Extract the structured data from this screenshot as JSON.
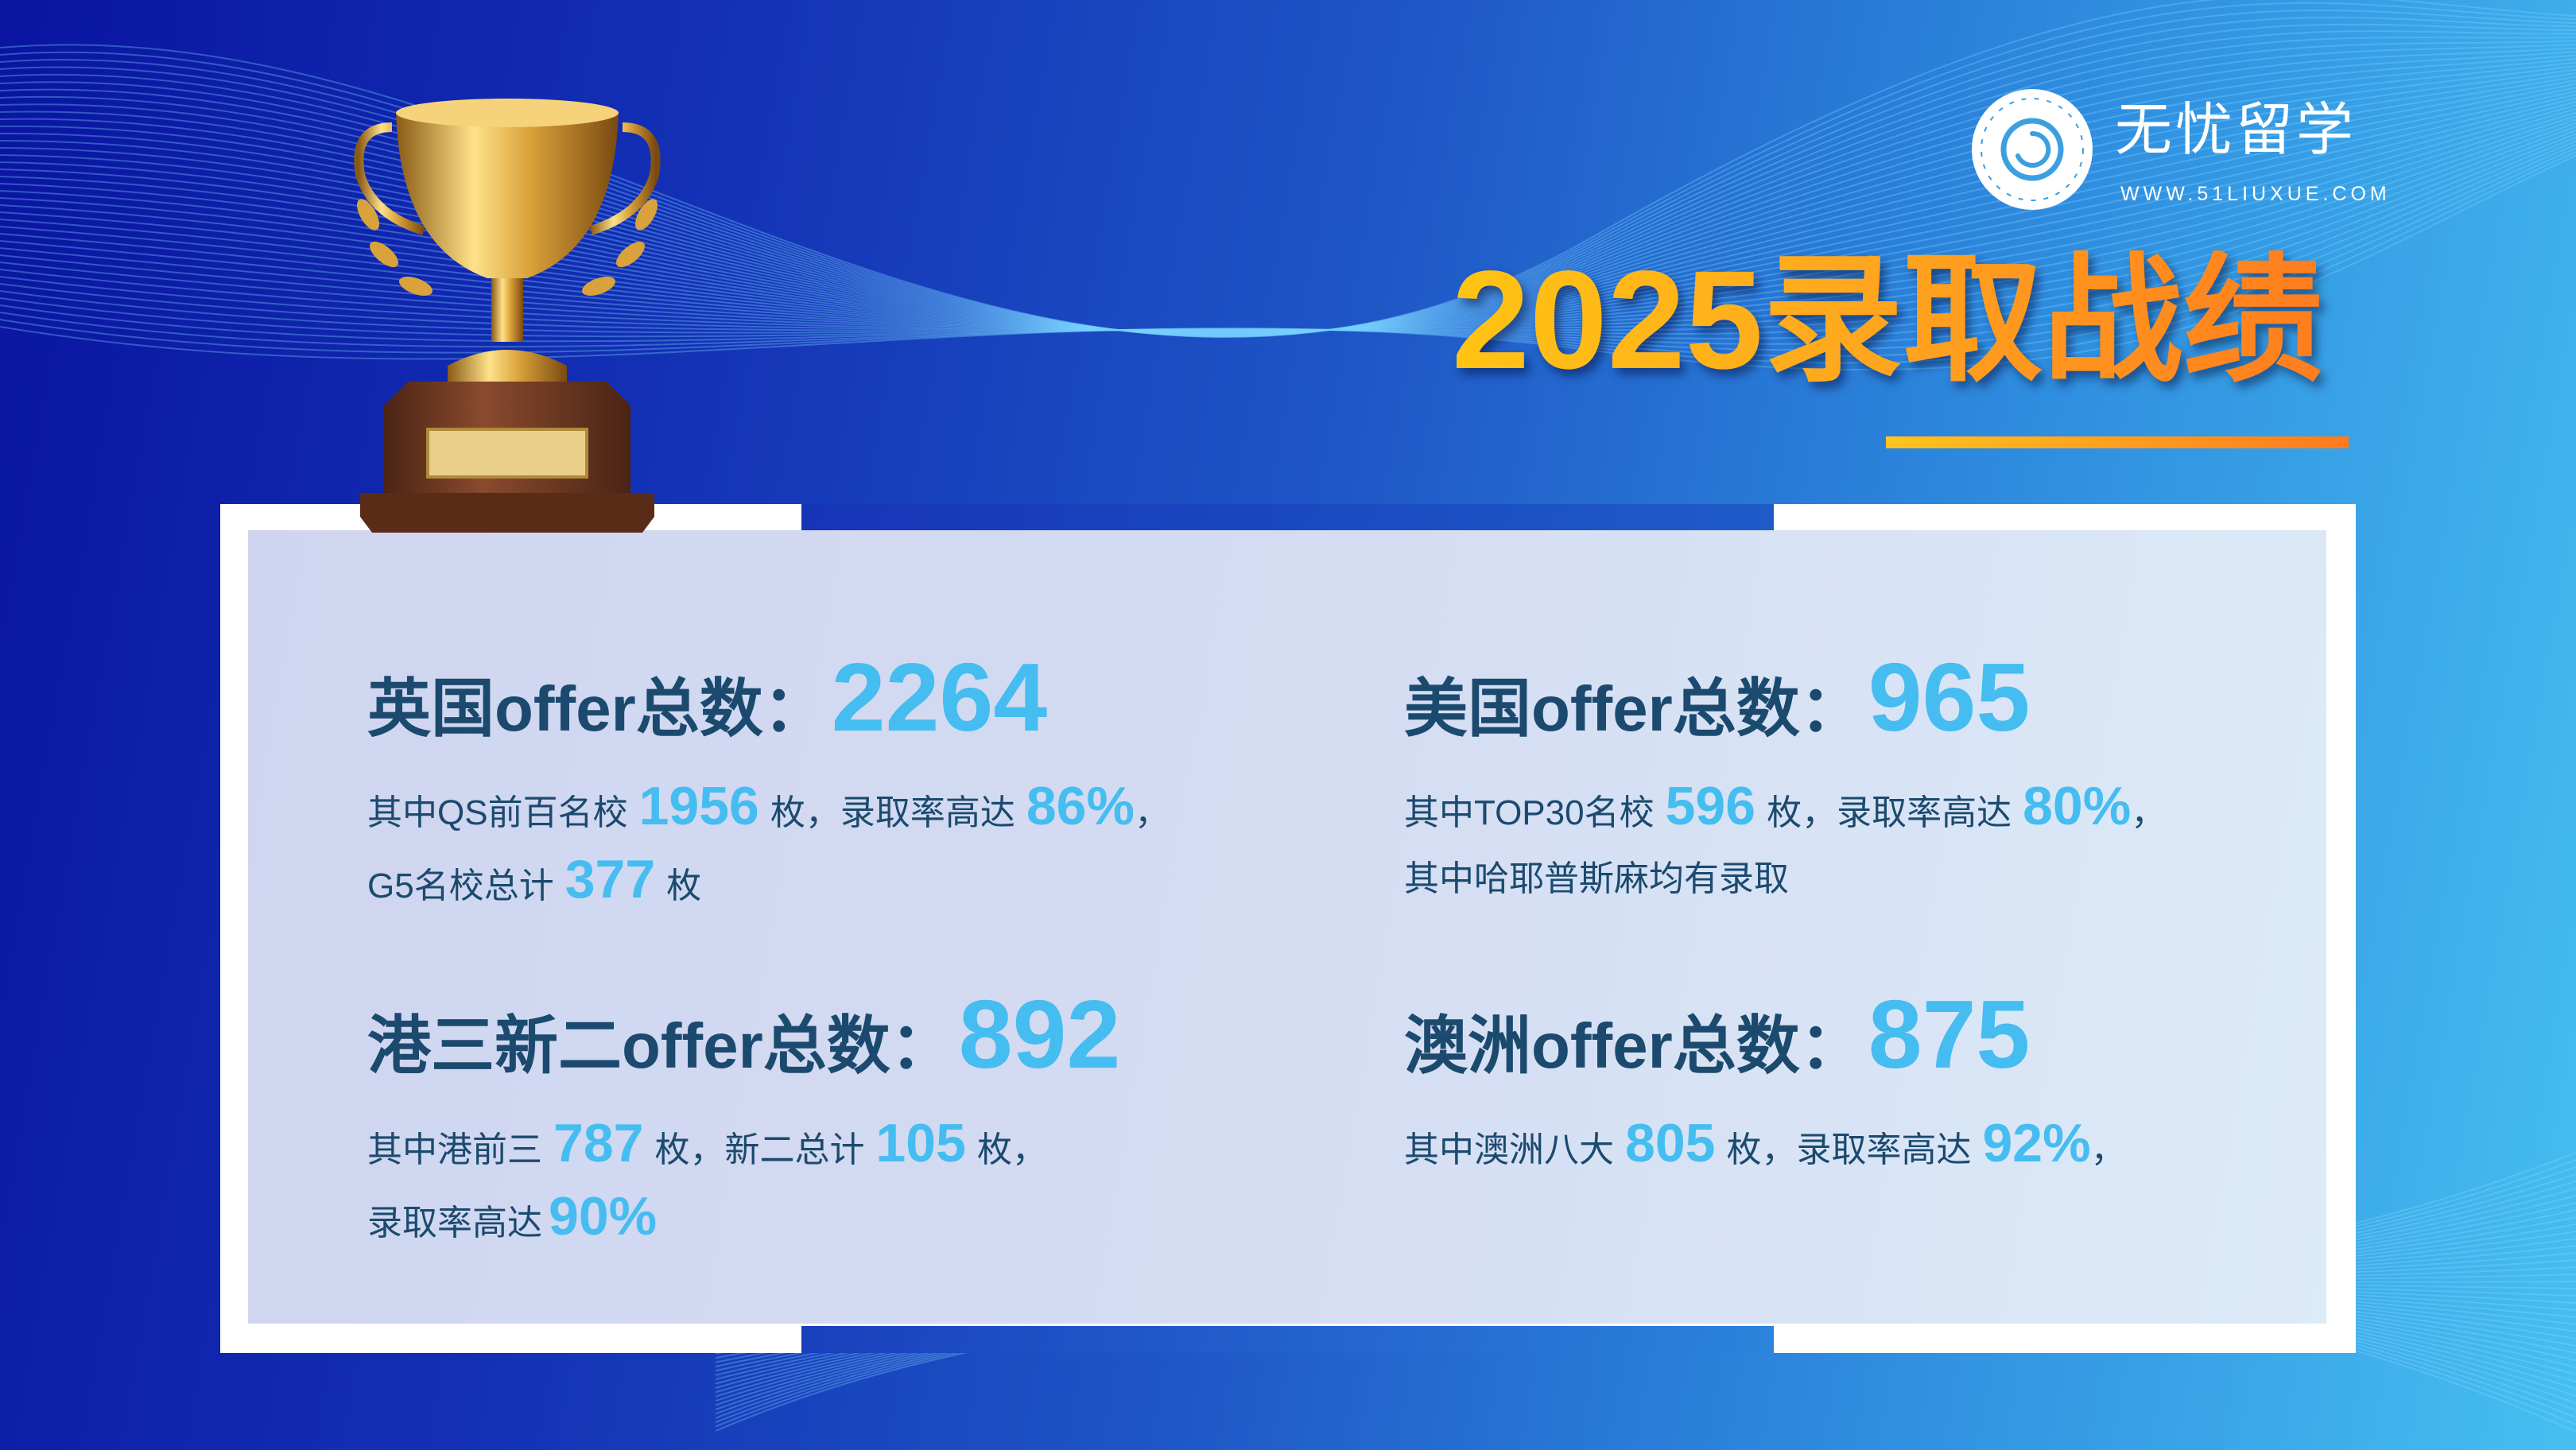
{
  "logo": {
    "name": "无忧留学",
    "url": "WWW.51LIUXUE.COM",
    "icon": "swirl-globe-logo"
  },
  "title": "2025录取战绩",
  "colors": {
    "heading": "#1b4a6e",
    "highlight": "#45bdf0",
    "title_start": "#ffc414",
    "title_end": "#ff7d1e"
  },
  "sections": [
    {
      "heading": "英国offer总数：",
      "total": "2264",
      "lines": [
        [
          "其中QS前百名校",
          "1956",
          "枚，录取率高达",
          "86%",
          "，"
        ],
        [
          "G5名校总计",
          "377",
          "枚"
        ]
      ]
    },
    {
      "heading": "美国offer总数：",
      "total": "965",
      "lines": [
        [
          "其中TOP30名校",
          "596",
          "枚，录取率高达",
          "80%",
          "，"
        ],
        [
          "其中哈耶普斯麻均有录取"
        ]
      ]
    },
    {
      "heading": "港三新二offer总数：",
      "total": "892",
      "lines": [
        [
          "其中港前三",
          "787",
          "枚，新二总计",
          "105",
          "枚，"
        ],
        [
          "录取率高达",
          "90%"
        ]
      ]
    },
    {
      "heading": "澳洲offer总数：",
      "total": "875",
      "lines": [
        [
          "其中澳洲八大",
          "805",
          "枚，录取率高达",
          "92%",
          "，"
        ]
      ]
    }
  ]
}
